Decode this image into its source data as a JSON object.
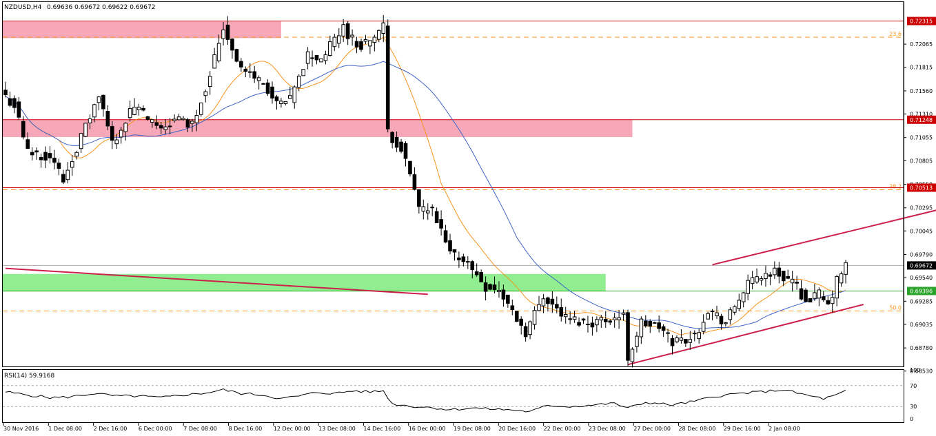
{
  "header": {
    "symbol": "NZDUSD,H4",
    "ohlc": "0.69636 0.69672 0.69622 0.69672"
  },
  "rsi_header": "RSI(14) 59.9168",
  "colors": {
    "bull_body": "#ffffff",
    "bear_body": "#000000",
    "ma_fast": "#f7931e",
    "ma_slow": "#3f63c7",
    "channel": "#cc1f4a",
    "resistance_zone": "#f7a8b8",
    "support_zone": "#90ee90",
    "fib_line": "#f7931e",
    "level_line": "#cc0000"
  },
  "chart_data": {
    "type": "candlestick",
    "title": "",
    "price_range": [
      0.6858,
      0.7252
    ],
    "price_ticks": [
      "0.72065",
      "0.71815",
      "0.71560",
      "0.71310",
      "0.71055",
      "0.70805",
      "0.70550",
      "0.70295",
      "0.70045",
      "0.69790",
      "0.69540",
      "0.69285",
      "0.69035",
      "0.68780",
      "0.68530"
    ],
    "time_labels": [
      "30 Nov 2016",
      "1 Dec 08:00",
      "2 Dec 16:00",
      "6 Dec 00:00",
      "7 Dec 08:00",
      "8 Dec 16:00",
      "12 Dec 00:00",
      "13 Dec 08:00",
      "14 Dec 16:00",
      "16 Dec 00:00",
      "19 Dec 08:00",
      "20 Dec 16:00",
      "22 Dec 00:00",
      "23 Dec 08:00",
      "27 Dec 00:00",
      "28 Dec 08:00",
      "29 Dec 16:00",
      "2 Jan 08:00"
    ],
    "horizontal_levels": [
      {
        "price": 0.72315,
        "label": "0.72315"
      },
      {
        "price": 0.71248,
        "label": "0.71248"
      },
      {
        "price": 0.70513,
        "label": "0.70513"
      },
      {
        "price": 0.69396,
        "label": "0.69396"
      }
    ],
    "current_price": {
      "price": 0.69672,
      "label": "0.69672"
    },
    "fibonacci": [
      {
        "label": "23.6",
        "price": 0.7214
      },
      {
        "label": "38.2",
        "price": 0.7049
      },
      {
        "label": "50.0",
        "price": 0.6918
      }
    ],
    "zones": [
      {
        "type": "resistance",
        "price_top": 0.7231,
        "price_bottom": 0.7213,
        "from_bar": 0,
        "to_bar": 62
      },
      {
        "type": "resistance",
        "price_top": 0.7125,
        "price_bottom": 0.7106,
        "from_bar": 0,
        "to_bar": 141
      },
      {
        "type": "support",
        "price_top": 0.6958,
        "price_bottom": 0.6939,
        "from_bar": 0,
        "to_bar": 135
      }
    ],
    "trendlines": [
      {
        "name": "descending",
        "from": [
          0,
          0.6964
        ],
        "to": [
          95,
          0.6936
        ]
      },
      {
        "name": "channel-upper",
        "from": [
          159,
          0.6968
        ],
        "to": [
          212,
          0.703
        ]
      },
      {
        "name": "channel-lower",
        "from": [
          140,
          0.686
        ],
        "to": [
          193,
          0.6925
        ]
      }
    ],
    "anchors": [
      {
        "bar": 0,
        "close": 0.715
      },
      {
        "bar": 2,
        "close": 0.714
      },
      {
        "bar": 5,
        "close": 0.709
      },
      {
        "bar": 10,
        "close": 0.7085
      },
      {
        "bar": 13,
        "close": 0.706
      },
      {
        "bar": 16,
        "close": 0.7095
      },
      {
        "bar": 21,
        "close": 0.715
      },
      {
        "bar": 24,
        "close": 0.71
      },
      {
        "bar": 29,
        "close": 0.714
      },
      {
        "bar": 34,
        "close": 0.7115
      },
      {
        "bar": 39,
        "close": 0.7125
      },
      {
        "bar": 42,
        "close": 0.712
      },
      {
        "bar": 45,
        "close": 0.716
      },
      {
        "bar": 49,
        "close": 0.7225
      },
      {
        "bar": 53,
        "close": 0.718
      },
      {
        "bar": 58,
        "close": 0.7165
      },
      {
        "bar": 61,
        "close": 0.714
      },
      {
        "bar": 64,
        "close": 0.7145
      },
      {
        "bar": 68,
        "close": 0.7195
      },
      {
        "bar": 71,
        "close": 0.719
      },
      {
        "bar": 76,
        "close": 0.7225
      },
      {
        "bar": 79,
        "close": 0.7205
      },
      {
        "bar": 82,
        "close": 0.721
      },
      {
        "bar": 85,
        "close": 0.7225
      },
      {
        "bar": 86,
        "close": 0.711
      },
      {
        "bar": 89,
        "close": 0.7095
      },
      {
        "bar": 93,
        "close": 0.703
      },
      {
        "bar": 96,
        "close": 0.7025
      },
      {
        "bar": 100,
        "close": 0.698
      },
      {
        "bar": 103,
        "close": 0.6975
      },
      {
        "bar": 108,
        "close": 0.6945
      },
      {
        "bar": 111,
        "close": 0.694
      },
      {
        "bar": 117,
        "close": 0.6895
      },
      {
        "bar": 121,
        "close": 0.6935
      },
      {
        "bar": 126,
        "close": 0.691
      },
      {
        "bar": 131,
        "close": 0.6905
      },
      {
        "bar": 136,
        "close": 0.691
      },
      {
        "bar": 139,
        "close": 0.6912
      },
      {
        "bar": 140,
        "close": 0.6867
      },
      {
        "bar": 143,
        "close": 0.6905
      },
      {
        "bar": 147,
        "close": 0.69
      },
      {
        "bar": 150,
        "close": 0.6885
      },
      {
        "bar": 155,
        "close": 0.689
      },
      {
        "bar": 158,
        "close": 0.692
      },
      {
        "bar": 162,
        "close": 0.6905
      },
      {
        "bar": 166,
        "close": 0.694
      },
      {
        "bar": 169,
        "close": 0.6955
      },
      {
        "bar": 173,
        "close": 0.696
      },
      {
        "bar": 177,
        "close": 0.695
      },
      {
        "bar": 180,
        "close": 0.693
      },
      {
        "bar": 183,
        "close": 0.6935
      },
      {
        "bar": 185,
        "close": 0.6922
      },
      {
        "bar": 187,
        "close": 0.695
      },
      {
        "bar": 189,
        "close": 0.6967
      }
    ],
    "rsi": {
      "value": 59.9168,
      "range": [
        0,
        100
      ],
      "levels": [
        30,
        70
      ],
      "tick_labels": [
        "100",
        "70",
        "30",
        "0"
      ],
      "anchors": [
        {
          "bar": 0,
          "value": 58
        },
        {
          "bar": 5,
          "value": 52
        },
        {
          "bar": 10,
          "value": 47
        },
        {
          "bar": 14,
          "value": 48
        },
        {
          "bar": 20,
          "value": 55
        },
        {
          "bar": 25,
          "value": 50
        },
        {
          "bar": 30,
          "value": 50
        },
        {
          "bar": 35,
          "value": 47
        },
        {
          "bar": 40,
          "value": 52
        },
        {
          "bar": 45,
          "value": 56
        },
        {
          "bar": 49,
          "value": 62
        },
        {
          "bar": 53,
          "value": 55
        },
        {
          "bar": 58,
          "value": 52
        },
        {
          "bar": 62,
          "value": 45
        },
        {
          "bar": 66,
          "value": 50
        },
        {
          "bar": 70,
          "value": 57
        },
        {
          "bar": 74,
          "value": 55
        },
        {
          "bar": 78,
          "value": 60
        },
        {
          "bar": 82,
          "value": 58
        },
        {
          "bar": 85,
          "value": 60
        },
        {
          "bar": 87,
          "value": 35
        },
        {
          "bar": 92,
          "value": 30
        },
        {
          "bar": 96,
          "value": 28
        },
        {
          "bar": 100,
          "value": 24
        },
        {
          "bar": 105,
          "value": 27
        },
        {
          "bar": 110,
          "value": 25
        },
        {
          "bar": 115,
          "value": 23
        },
        {
          "bar": 118,
          "value": 20
        },
        {
          "bar": 122,
          "value": 32
        },
        {
          "bar": 127,
          "value": 30
        },
        {
          "bar": 132,
          "value": 33
        },
        {
          "bar": 137,
          "value": 36
        },
        {
          "bar": 140,
          "value": 27
        },
        {
          "bar": 144,
          "value": 38
        },
        {
          "bar": 150,
          "value": 33
        },
        {
          "bar": 155,
          "value": 40
        },
        {
          "bar": 160,
          "value": 50
        },
        {
          "bar": 165,
          "value": 55
        },
        {
          "bar": 170,
          "value": 58
        },
        {
          "bar": 175,
          "value": 62
        },
        {
          "bar": 180,
          "value": 52
        },
        {
          "bar": 184,
          "value": 45
        },
        {
          "bar": 187,
          "value": 52
        },
        {
          "bar": 189,
          "value": 59.9
        }
      ]
    }
  }
}
